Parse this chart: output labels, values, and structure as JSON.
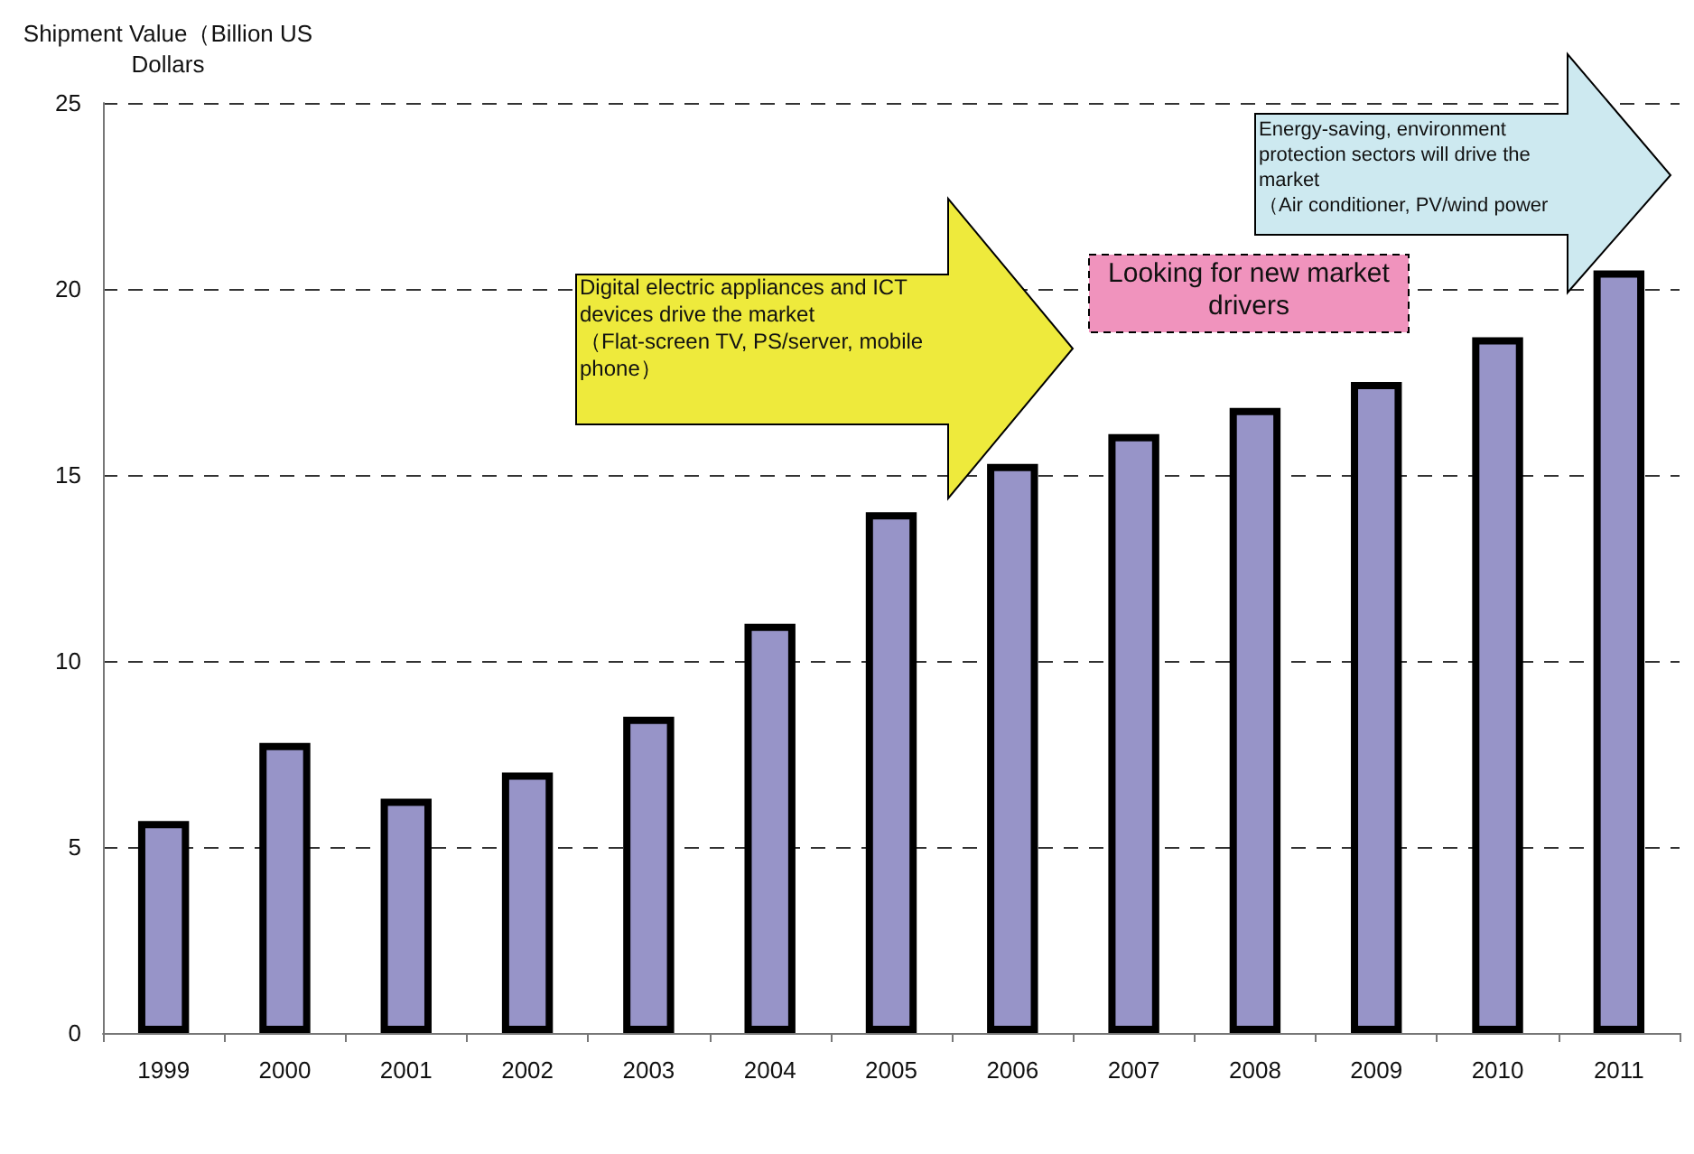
{
  "chart_data": {
    "type": "bar",
    "ylabel": "Shipment Value（Billion US Dollars",
    "categories": [
      "1999",
      "2000",
      "2001",
      "2002",
      "2003",
      "2004",
      "2005",
      "2006",
      "2007",
      "2008",
      "2009",
      "2010",
      "2011"
    ],
    "values": [
      5.7,
      7.8,
      6.3,
      7.0,
      8.5,
      11.0,
      14.0,
      15.3,
      16.1,
      16.8,
      17.5,
      18.7,
      20.5
    ],
    "color": "#9794c8",
    "ylim": [
      0,
      25
    ],
    "yticks": [
      0,
      5,
      10,
      15,
      20,
      25
    ],
    "grid": "y",
    "annotations": [
      "Digital electric appliances and ICT devices drive the market\n（Flat-screen TV, PS/server, mobile phone）",
      "Looking for new market drivers",
      "Energy-saving, environment protection sectors will drive the market\n（Air conditioner, PV/wind power"
    ]
  }
}
